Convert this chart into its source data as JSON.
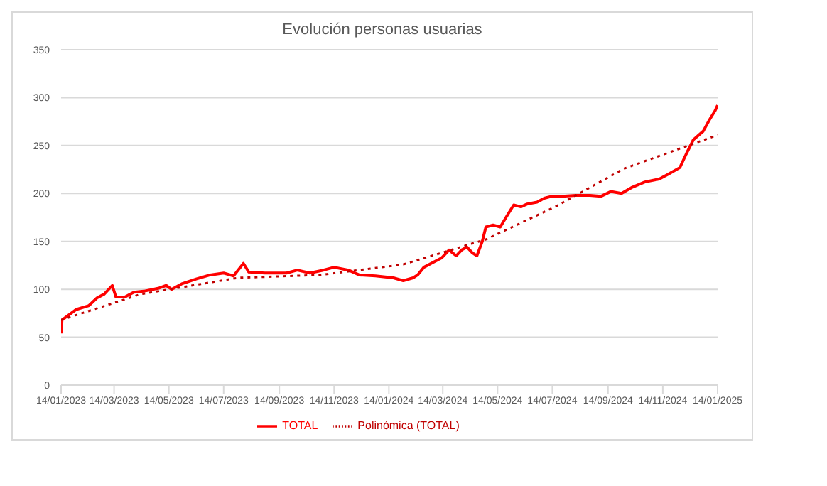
{
  "chart_data": {
    "type": "line",
    "title": "Evolución personas usuarias",
    "xlim": [
      "2023-01-14",
      "2025-01-14"
    ],
    "xticks": [
      {
        "value": "2023-01-14",
        "label": "14/01/2023"
      },
      {
        "value": "2023-03-14",
        "label": "14/03/2023"
      },
      {
        "value": "2023-05-14",
        "label": "14/05/2023"
      },
      {
        "value": "2023-07-14",
        "label": "14/07/2023"
      },
      {
        "value": "2023-09-14",
        "label": "14/09/2023"
      },
      {
        "value": "2023-11-14",
        "label": "14/11/2023"
      },
      {
        "value": "2024-01-14",
        "label": "14/01/2024"
      },
      {
        "value": "2024-03-14",
        "label": "14/03/2024"
      },
      {
        "value": "2024-05-14",
        "label": "14/05/2024"
      },
      {
        "value": "2024-07-14",
        "label": "14/07/2024"
      },
      {
        "value": "2024-09-14",
        "label": "14/09/2024"
      },
      {
        "value": "2024-11-14",
        "label": "14/11/2024"
      },
      {
        "value": "2025-01-14",
        "label": "14/01/2025"
      }
    ],
    "ylim": [
      0,
      350
    ],
    "yticks": [
      0,
      50,
      100,
      150,
      200,
      250,
      300,
      350
    ],
    "grid": "y",
    "legend": "bottom",
    "marker": "none",
    "series": [
      {
        "name": "TOTAL",
        "color": "#ff0000",
        "line_style": "solid",
        "x": [
          "2023-01-14",
          "2023-01-15",
          "2023-01-31",
          "2023-02-14",
          "2023-02-23",
          "2023-03-03",
          "2023-03-12",
          "2023-03-16",
          "2023-03-26",
          "2023-04-05",
          "2023-04-16",
          "2023-05-02",
          "2023-05-11",
          "2023-05-17",
          "2023-05-29",
          "2023-06-14",
          "2023-06-29",
          "2023-07-14",
          "2023-07-25",
          "2023-08-05",
          "2023-08-11",
          "2023-08-29",
          "2023-09-22",
          "2023-10-04",
          "2023-10-18",
          "2023-11-02",
          "2023-11-14",
          "2023-11-30",
          "2023-12-12",
          "2023-12-30",
          "2024-01-19",
          "2024-01-30",
          "2024-02-10",
          "2024-02-15",
          "2024-02-22",
          "2024-03-01",
          "2024-03-13",
          "2024-03-21",
          "2024-03-29",
          "2024-04-04",
          "2024-04-10",
          "2024-04-16",
          "2024-04-21",
          "2024-04-27",
          "2024-05-01",
          "2024-05-09",
          "2024-05-17",
          "2024-05-24",
          "2024-06-01",
          "2024-06-09",
          "2024-06-16",
          "2024-06-27",
          "2024-07-05",
          "2024-07-13",
          "2024-07-25",
          "2024-08-09",
          "2024-08-25",
          "2024-09-06",
          "2024-09-17",
          "2024-09-29",
          "2024-10-10",
          "2024-10-25",
          "2024-11-10",
          "2024-11-20",
          "2024-12-03",
          "2024-12-10",
          "2024-12-18",
          "2024-12-29",
          "2025-01-05",
          "2025-01-11",
          "2025-01-14"
        ],
        "values": [
          54,
          68,
          79,
          83,
          91,
          95,
          104,
          92,
          92,
          97,
          98,
          101,
          104,
          100,
          106,
          111,
          115,
          117,
          114,
          127,
          118,
          117,
          117,
          120,
          117,
          120,
          123,
          120,
          115,
          114,
          112,
          109,
          112,
          115,
          123,
          127,
          133,
          141,
          135,
          141,
          144,
          138,
          135,
          150,
          165,
          167,
          165,
          176,
          188,
          186,
          189,
          191,
          195,
          197,
          197,
          198,
          198,
          197,
          202,
          200,
          206,
          212,
          215,
          220,
          227,
          241,
          256,
          265,
          277,
          286,
          292
        ]
      },
      {
        "name": "Polinómica (TOTAL)",
        "color": "#c00000",
        "line_style": "dotted",
        "x": [
          "2023-01-14",
          "2023-04-13",
          "2023-07-30",
          "2023-10-30",
          "2024-01-30",
          "2024-05-01",
          "2024-07-17",
          "2024-10-02",
          "2025-01-14"
        ],
        "values": [
          68,
          95,
          112,
          115,
          126,
          152,
          186,
          226,
          261
        ]
      }
    ]
  }
}
